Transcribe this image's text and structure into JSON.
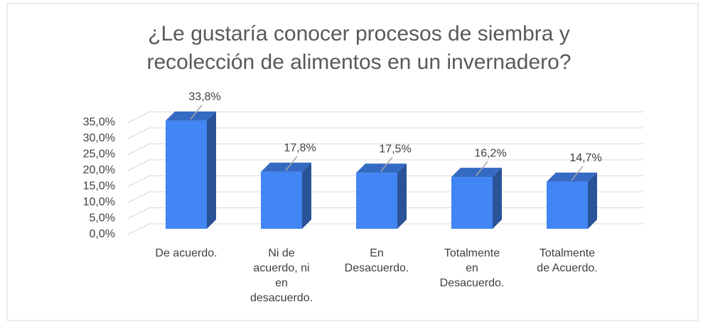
{
  "chart_data": {
    "type": "bar3d",
    "title": "¿Le gustaría conocer procesos de siembra y recolección de alimentos en un invernadero?",
    "categories": [
      "De acuerdo.",
      "Ni de acuerdo, ni en desacuerdo.",
      "En Desacuerdo.",
      "Totalmente en Desacuerdo.",
      "Totalmente de Acuerdo."
    ],
    "values": [
      33.8,
      17.8,
      17.5,
      16.2,
      14.7
    ],
    "value_labels": [
      "33,8%",
      "17,8%",
      "17,5%",
      "16,2%",
      "14,7%"
    ],
    "color": "#4285f4",
    "ylim": [
      0,
      35
    ],
    "yticks": [
      {
        "value": 0,
        "label": "0,0%"
      },
      {
        "value": 5,
        "label": "5,0%"
      },
      {
        "value": 10,
        "label": "10,0%"
      },
      {
        "value": 15,
        "label": "15,0%"
      },
      {
        "value": 20,
        "label": "20,0%"
      },
      {
        "value": 25,
        "label": "25,0%"
      },
      {
        "value": 30,
        "label": "30,0%"
      },
      {
        "value": 35,
        "label": "35,0%"
      }
    ],
    "grid": true
  }
}
